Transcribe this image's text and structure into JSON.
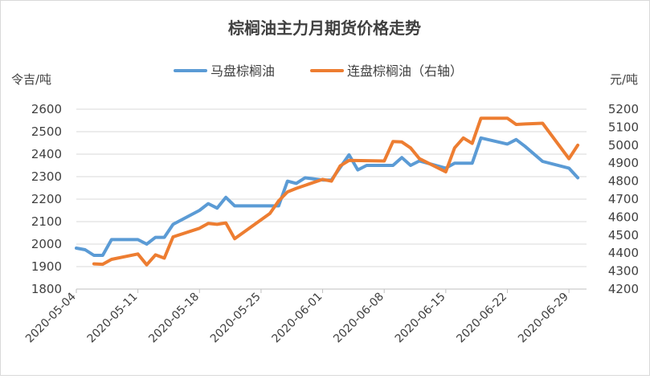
{
  "chart_data": {
    "type": "line",
    "title": "棕榈油主力月期货价格走势",
    "ylabel_left": "令吉/吨",
    "ylabel_right": "元/吨",
    "ylim_left": [
      1800,
      2600
    ],
    "ylim_right": [
      4200,
      5200
    ],
    "yticks_left": [
      "1800",
      "1900",
      "2000",
      "2100",
      "2200",
      "2300",
      "2400",
      "2500",
      "2600"
    ],
    "yticks_right": [
      "4200",
      "4300",
      "4400",
      "4500",
      "4600",
      "4700",
      "4800",
      "4900",
      "5000",
      "5100",
      "5200"
    ],
    "x_start": "2020-05-04",
    "x_end": "2020-07-01",
    "xticks": [
      "2020-05-04",
      "2020-05-11",
      "2020-05-18",
      "2020-05-25",
      "2020-06-01",
      "2020-06-08",
      "2020-06-15",
      "2020-06-22",
      "2020-06-29"
    ],
    "legend_position": "top",
    "grid": true,
    "series": [
      {
        "name": "马盘棕榈油",
        "axis": "left",
        "color": "#5b9bd5",
        "points": [
          [
            "2020-05-04",
            1982
          ],
          [
            "2020-05-05",
            1975
          ],
          [
            "2020-05-06",
            1950
          ],
          [
            "2020-05-07",
            1950
          ],
          [
            "2020-05-08",
            2020
          ],
          [
            "2020-05-11",
            2020
          ],
          [
            "2020-05-12",
            2000
          ],
          [
            "2020-05-13",
            2030
          ],
          [
            "2020-05-14",
            2030
          ],
          [
            "2020-05-15",
            2088
          ],
          [
            "2020-05-18",
            2150
          ],
          [
            "2020-05-19",
            2180
          ],
          [
            "2020-05-20",
            2160
          ],
          [
            "2020-05-21",
            2208
          ],
          [
            "2020-05-22",
            2170
          ],
          [
            "2020-05-26",
            2170
          ],
          [
            "2020-05-27",
            2170
          ],
          [
            "2020-05-28",
            2280
          ],
          [
            "2020-05-29",
            2270
          ],
          [
            "2020-05-30",
            2295
          ],
          [
            "2020-06-01",
            2285
          ],
          [
            "2020-06-02",
            2285
          ],
          [
            "2020-06-04",
            2397
          ],
          [
            "2020-06-05",
            2330
          ],
          [
            "2020-06-06",
            2350
          ],
          [
            "2020-06-09",
            2350
          ],
          [
            "2020-06-10",
            2385
          ],
          [
            "2020-06-11",
            2350
          ],
          [
            "2020-06-12",
            2370
          ],
          [
            "2020-06-15",
            2338
          ],
          [
            "2020-06-16",
            2360
          ],
          [
            "2020-06-18",
            2360
          ],
          [
            "2020-06-19",
            2472
          ],
          [
            "2020-06-22",
            2445
          ],
          [
            "2020-06-23",
            2465
          ],
          [
            "2020-06-24",
            2435
          ],
          [
            "2020-06-26",
            2368
          ],
          [
            "2020-06-29",
            2338
          ],
          [
            "2020-06-30",
            2295
          ]
        ]
      },
      {
        "name": "连盘棕榈油（右轴）",
        "axis": "right",
        "color": "#ed7d31",
        "points": [
          [
            "2020-05-06",
            4340
          ],
          [
            "2020-05-07",
            4338
          ],
          [
            "2020-05-08",
            4365
          ],
          [
            "2020-05-11",
            4395
          ],
          [
            "2020-05-12",
            4335
          ],
          [
            "2020-05-13",
            4390
          ],
          [
            "2020-05-14",
            4372
          ],
          [
            "2020-05-15",
            4490
          ],
          [
            "2020-05-18",
            4538
          ],
          [
            "2020-05-19",
            4565
          ],
          [
            "2020-05-20",
            4560
          ],
          [
            "2020-05-21",
            4568
          ],
          [
            "2020-05-22",
            4480
          ],
          [
            "2020-05-25",
            4585
          ],
          [
            "2020-05-26",
            4620
          ],
          [
            "2020-05-27",
            4690
          ],
          [
            "2020-05-28",
            4740
          ],
          [
            "2020-05-29",
            4760
          ],
          [
            "2020-06-01",
            4810
          ],
          [
            "2020-06-02",
            4800
          ],
          [
            "2020-06-03",
            4885
          ],
          [
            "2020-06-04",
            4915
          ],
          [
            "2020-06-08",
            4912
          ],
          [
            "2020-06-09",
            5020
          ],
          [
            "2020-06-10",
            5018
          ],
          [
            "2020-06-11",
            4985
          ],
          [
            "2020-06-12",
            4925
          ],
          [
            "2020-06-15",
            4852
          ],
          [
            "2020-06-16",
            4985
          ],
          [
            "2020-06-17",
            5040
          ],
          [
            "2020-06-18",
            5010
          ],
          [
            "2020-06-19",
            5150
          ],
          [
            "2020-06-22",
            5150
          ],
          [
            "2020-06-23",
            5115
          ],
          [
            "2020-06-24",
            5118
          ],
          [
            "2020-06-26",
            5122
          ],
          [
            "2020-06-29",
            4925
          ],
          [
            "2020-06-30",
            5000
          ]
        ]
      }
    ]
  }
}
